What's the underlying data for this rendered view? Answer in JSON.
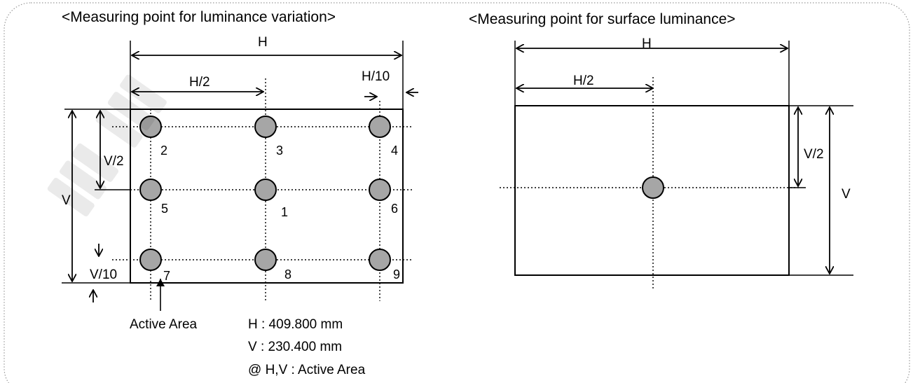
{
  "left_diagram": {
    "title": "<Measuring point for luminance variation>",
    "dim_h": "H",
    "dim_h_half": "H/2",
    "dim_h_tenth": "H/10",
    "dim_v": "V",
    "dim_v_half": "V/2",
    "dim_v_tenth": "V/10",
    "points": [
      "1",
      "2",
      "3",
      "4",
      "5",
      "6",
      "7",
      "8",
      "9"
    ],
    "active_area_label": "Active Area",
    "notes": [
      "H : 409.800 mm",
      "V : 230.400 mm",
      "@ H,V : Active Area"
    ]
  },
  "right_diagram": {
    "title": "<Measuring point for surface luminance>",
    "dim_h": "H",
    "dim_h_half": "H/2",
    "dim_v": "V",
    "dim_v_half": "V/2"
  },
  "colors": {
    "point_fill": "#a6a6a6",
    "line": "#000000"
  }
}
